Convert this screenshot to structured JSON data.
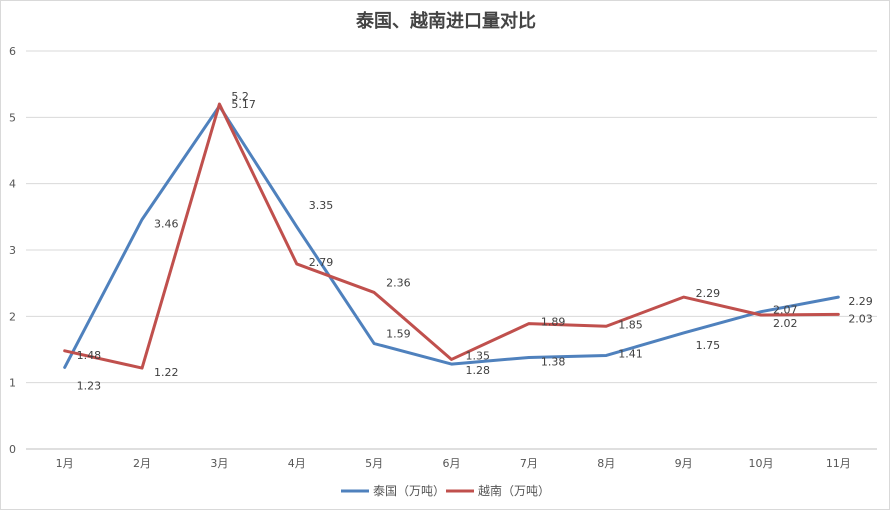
{
  "chart_data": {
    "type": "line",
    "title": "泰国、越南进口量对比",
    "categories": [
      "1月",
      "2月",
      "3月",
      "4月",
      "5月",
      "6月",
      "7月",
      "8月",
      "9月",
      "10月",
      "11月"
    ],
    "ylim": [
      0,
      6
    ],
    "yticks": [
      "0",
      "1",
      "2",
      "3",
      "4",
      "5",
      "6"
    ],
    "grid": true,
    "legend_position": "bottom",
    "series": [
      {
        "name": "泰国（万吨）",
        "color": "#4f81bd",
        "values": [
          1.23,
          3.46,
          5.17,
          3.35,
          1.59,
          1.28,
          1.38,
          1.41,
          1.75,
          2.07,
          2.29
        ]
      },
      {
        "name": "越南（万吨）",
        "color": "#c0504d",
        "values": [
          1.48,
          1.22,
          5.2,
          2.79,
          2.36,
          1.35,
          1.89,
          1.85,
          2.29,
          2.02,
          2.03
        ]
      }
    ]
  }
}
